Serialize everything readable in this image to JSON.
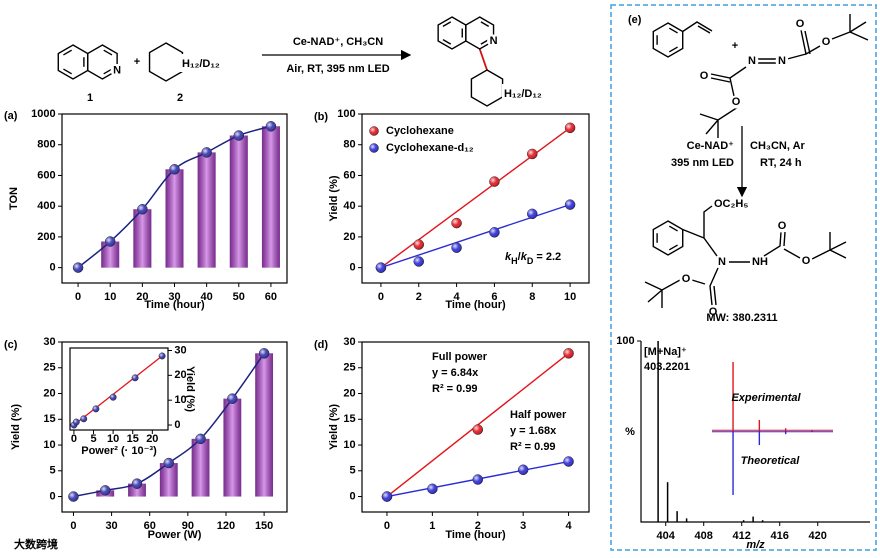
{
  "scheme": {
    "compound_labels": [
      "1",
      "2"
    ],
    "plus": "+",
    "substituent": "H₁₂/D₁₂",
    "conditions": [
      "Ce-NAD⁺, CH₃CN",
      "Air, RT, 395 nm LED"
    ],
    "atom": "N"
  },
  "panel_e": {
    "label": "(e)",
    "plus": "+",
    "conditions_left": [
      "Ce-NAD⁺",
      "395 nm LED"
    ],
    "conditions_right": [
      "CH₃CN, Ar",
      "RT, 24 h"
    ],
    "reagent_atoms": [
      "O",
      "N",
      "N",
      "O",
      "O",
      "O"
    ],
    "product_atoms": [
      "N",
      "NH",
      "O",
      "O",
      "O",
      "O"
    ],
    "substituent": "OC₂H₅",
    "mw": "MW: 380.2311"
  },
  "watermark": "大数跨境",
  "chart_data": [
    {
      "type": "bar",
      "panel_label": "(a)",
      "categories": [
        "0",
        "10",
        "20",
        "30",
        "40",
        "50",
        "60"
      ],
      "values": [
        0,
        170,
        380,
        640,
        750,
        860,
        920
      ],
      "color": "#b845d8",
      "marker_color": "#3030b0",
      "line_color": "#1a237e",
      "ylim": [
        -100,
        1000
      ],
      "yticks": [
        0,
        200,
        400,
        600,
        800,
        1000
      ],
      "xlabel": "Time (hour)",
      "ylabel": "TON"
    },
    {
      "type": "scatter",
      "panel_label": "(b)",
      "x": [
        0,
        2,
        4,
        6,
        8,
        10
      ],
      "series": [
        {
          "name": "Cyclohexane",
          "color": "#e3141b",
          "values": [
            0,
            15,
            29,
            56,
            74,
            91
          ]
        },
        {
          "name": "Cyclohexane-d₁₂",
          "color": "#2a2ad8",
          "values": [
            0,
            4,
            13,
            23,
            35,
            41
          ]
        }
      ],
      "xlim": [
        -1,
        11
      ],
      "xticks": [
        0,
        2,
        4,
        6,
        8,
        10
      ],
      "ylim": [
        -10,
        100
      ],
      "yticks": [
        0,
        20,
        40,
        60,
        80,
        100
      ],
      "xlabel": "Time (hour)",
      "ylabel": "Yield (%)",
      "legend": "upper left",
      "annotation": [
        "k",
        "H",
        "/",
        "k",
        "D",
        " = 2.2"
      ]
    },
    {
      "type": "bar",
      "panel_label": "(c)",
      "x": [
        0,
        25,
        50,
        75,
        100,
        125,
        150
      ],
      "values": [
        0,
        1.2,
        2.5,
        6.5,
        11.2,
        19,
        27.8
      ],
      "color": "#b845d8",
      "marker_color": "#3030b0",
      "line_color": "#1a237e",
      "xlim": [
        -9,
        168
      ],
      "xticks": [
        0,
        30,
        60,
        90,
        120,
        150
      ],
      "ylim": [
        -3,
        30
      ],
      "yticks": [
        0,
        5,
        10,
        15,
        20,
        25,
        30
      ],
      "xlabel": "Power (W)",
      "ylabel": "Yield (%)",
      "inset": {
        "type": "scatter",
        "x": [
          0,
          0.6,
          2.5,
          5.6,
          10,
          15.6,
          22.5
        ],
        "values": [
          0,
          1.2,
          2.5,
          6.5,
          11.2,
          19,
          27.8
        ],
        "color": "#3030b0",
        "line_color": "#e3141b",
        "xlim": [
          -1,
          24
        ],
        "xticks": [
          0,
          5,
          10,
          15,
          20
        ],
        "ylim": [
          -2,
          31
        ],
        "yticks": [
          0,
          10,
          20,
          30
        ],
        "xlabel": "Power² (· 10⁻³)",
        "ylabel": "Yield (%)"
      }
    },
    {
      "type": "scatter",
      "panel_label": "(d)",
      "series": [
        {
          "name": "Full power",
          "equation": "y = 6.84x",
          "r2": "R² = 0.99",
          "color": "#e3141b",
          "x": [
            0,
            2,
            4
          ],
          "values": [
            0,
            13,
            27.8
          ]
        },
        {
          "name": "Half power",
          "equation": "y = 1.68x",
          "r2": "R² = 0.99",
          "color": "#2a2ad8",
          "x": [
            0,
            1,
            2,
            3,
            4
          ],
          "values": [
            0,
            1.5,
            3.3,
            5.2,
            6.8
          ]
        }
      ],
      "xlim": [
        -0.55,
        4.45
      ],
      "xticks": [
        0,
        1,
        2,
        3,
        4
      ],
      "ylim": [
        -3,
        30
      ],
      "yticks": [
        0,
        5,
        10,
        15,
        20,
        25,
        30
      ],
      "xlabel": "Time (hour)",
      "ylabel": "Yield (%)"
    },
    {
      "type": "stem",
      "x": [
        403.2,
        404.2,
        405.2,
        406.2,
        412.2,
        413.2,
        414.2
      ],
      "values": [
        100,
        22,
        6,
        2,
        1,
        3,
        1
      ],
      "color": "#000000",
      "xlim": [
        401.4,
        425.5
      ],
      "xticks": [
        404,
        408,
        412,
        416,
        420
      ],
      "ylim": [
        0,
        100
      ],
      "yticks": [
        100
      ],
      "xlabel": "m/z",
      "ylabel": "%",
      "peak_label": [
        "[M+Na]⁺",
        "403.2201"
      ],
      "inset": {
        "type": "stem",
        "x": [
          403.2,
          404.2,
          405.2,
          406.2
        ],
        "xlim": [
          402.4,
          407
        ],
        "series": [
          {
            "name": "Experimental",
            "color": "#e3141b",
            "values": [
              100,
              16,
              4,
              1
            ]
          },
          {
            "name": "Theoretical",
            "color": "#2a2ad8",
            "values": [
              100,
              22,
              5,
              1
            ]
          }
        ]
      }
    }
  ]
}
